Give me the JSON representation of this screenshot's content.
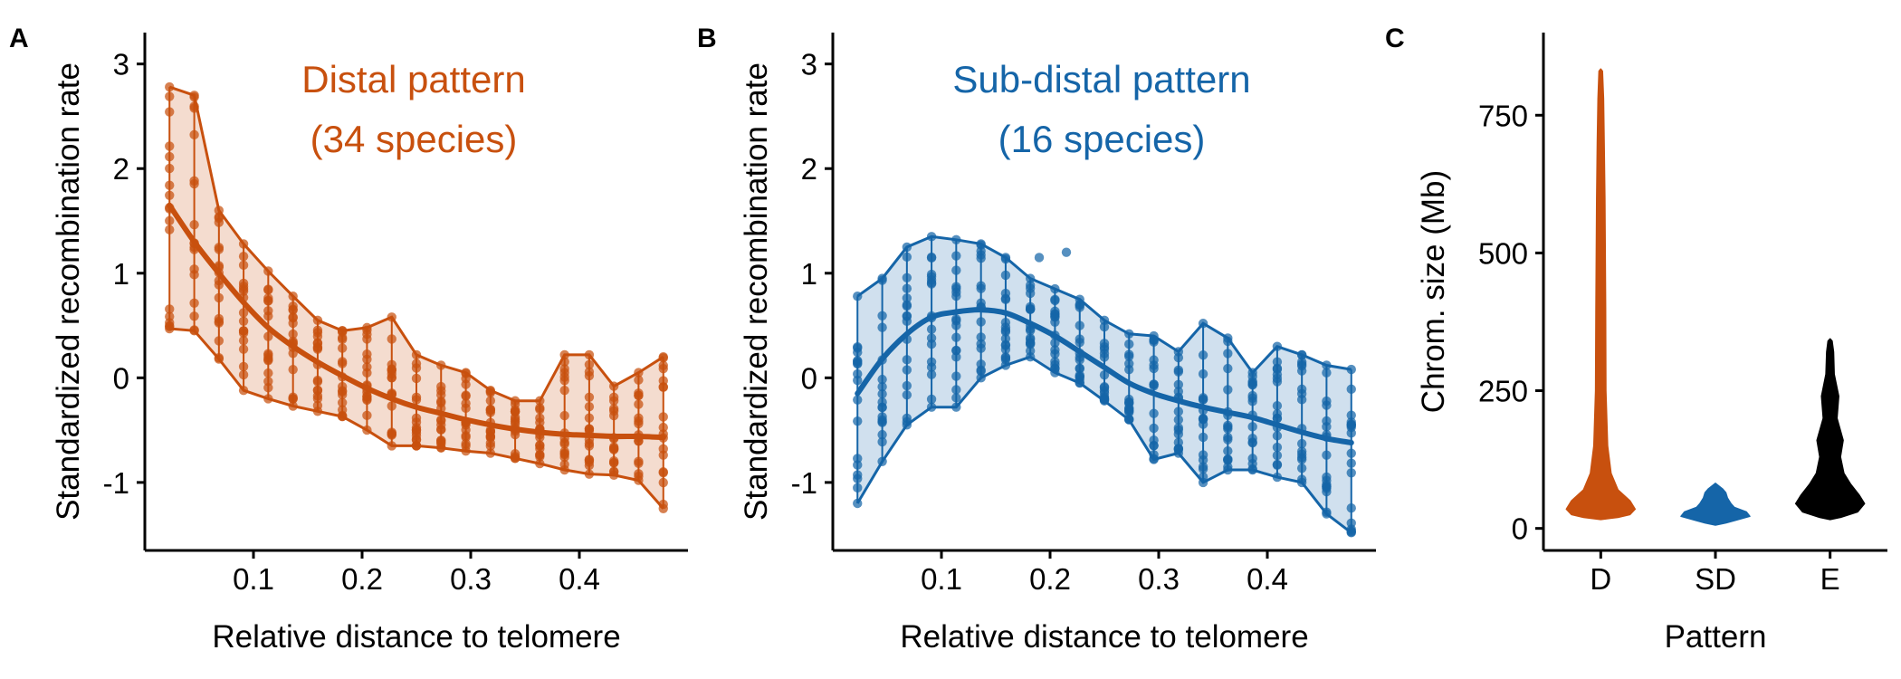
{
  "colors": {
    "distal": "#C8500E",
    "subdistal": "#1565A8",
    "even": "#000000",
    "axis": "#000000"
  },
  "panels": {
    "a": {
      "letter": "A",
      "title_line1": "Distal pattern",
      "title_line2": "(34 species)"
    },
    "b": {
      "letter": "B",
      "title_line1": "Sub-distal pattern",
      "title_line2": "(16 species)"
    },
    "c": {
      "letter": "C"
    }
  },
  "chart_data": [
    {
      "type": "scatter",
      "panel": "A",
      "title": "Distal pattern (34 species)",
      "xlabel": "Relative distance to telomere",
      "ylabel": "Standardized recombination rate",
      "xlim": [
        0.0,
        0.5
      ],
      "ylim": [
        -1.65,
        3.3
      ],
      "x_ticks": [
        0.1,
        0.2,
        0.3,
        0.4
      ],
      "x_tick_labels": [
        "0.1",
        "0.2",
        "0.3",
        "0.4"
      ],
      "y_ticks": [
        -1,
        0,
        1,
        2,
        3
      ],
      "y_tick_labels": [
        "-1",
        "0",
        "1",
        "2",
        "3"
      ],
      "grid": false,
      "x": [
        0.0227,
        0.0455,
        0.0682,
        0.0909,
        0.1136,
        0.1364,
        0.1591,
        0.1818,
        0.2045,
        0.2273,
        0.25,
        0.2727,
        0.2955,
        0.3182,
        0.3409,
        0.3636,
        0.3864,
        0.4091,
        0.4318,
        0.4545,
        0.4773
      ],
      "upper": [
        2.78,
        2.7,
        1.6,
        1.28,
        1.02,
        0.78,
        0.55,
        0.45,
        0.48,
        0.58,
        0.22,
        0.12,
        0.05,
        -0.12,
        -0.22,
        -0.22,
        0.22,
        0.22,
        -0.08,
        0.05,
        0.2
      ],
      "lower": [
        0.47,
        0.45,
        0.18,
        -0.12,
        -0.2,
        -0.27,
        -0.32,
        -0.37,
        -0.5,
        -0.65,
        -0.65,
        -0.67,
        -0.7,
        -0.72,
        -0.77,
        -0.82,
        -0.88,
        -0.92,
        -0.93,
        -0.98,
        -1.25
      ],
      "trend": [
        1.65,
        1.3,
        1.0,
        0.72,
        0.48,
        0.3,
        0.15,
        0.02,
        -0.1,
        -0.2,
        -0.28,
        -0.34,
        -0.4,
        -0.45,
        -0.49,
        -0.52,
        -0.54,
        -0.55,
        -0.56,
        -0.56,
        -0.57
      ],
      "series": [
        {
          "name": "Distal",
          "color": "#C8500E"
        }
      ]
    },
    {
      "type": "scatter",
      "panel": "B",
      "title": "Sub-distal pattern (16 species)",
      "xlabel": "Relative distance to telomere",
      "ylabel": "Standardized recombination rate",
      "xlim": [
        0.0,
        0.5
      ],
      "ylim": [
        -1.65,
        3.3
      ],
      "x_ticks": [
        0.1,
        0.2,
        0.3,
        0.4
      ],
      "x_tick_labels": [
        "0.1",
        "0.2",
        "0.3",
        "0.4"
      ],
      "y_ticks": [
        -1,
        0,
        1,
        2,
        3
      ],
      "y_tick_labels": [
        "-1",
        "0",
        "1",
        "2",
        "3"
      ],
      "grid": false,
      "x": [
        0.0227,
        0.0455,
        0.0682,
        0.0909,
        0.1136,
        0.1364,
        0.1591,
        0.1818,
        0.2045,
        0.2273,
        0.25,
        0.2727,
        0.2955,
        0.3182,
        0.3409,
        0.3636,
        0.3864,
        0.4091,
        0.4318,
        0.4545,
        0.4773
      ],
      "upper": [
        0.78,
        0.95,
        1.25,
        1.35,
        1.32,
        1.28,
        1.15,
        0.95,
        0.85,
        0.75,
        0.55,
        0.42,
        0.4,
        0.25,
        0.52,
        0.38,
        0.05,
        0.3,
        0.22,
        0.12,
        0.08
      ],
      "lower": [
        -1.2,
        -0.8,
        -0.45,
        -0.28,
        -0.28,
        0.0,
        0.12,
        0.2,
        0.05,
        -0.05,
        -0.22,
        -0.4,
        -0.78,
        -0.72,
        -1.0,
        -0.88,
        -0.88,
        -0.95,
        -1.0,
        -1.3,
        -1.48
      ],
      "trend": [
        -0.15,
        0.18,
        0.42,
        0.58,
        0.63,
        0.65,
        0.62,
        0.52,
        0.4,
        0.25,
        0.1,
        -0.05,
        -0.15,
        -0.22,
        -0.28,
        -0.33,
        -0.38,
        -0.45,
        -0.52,
        -0.58,
        -0.62
      ],
      "extra_points": [
        {
          "x": 0.19,
          "y": 1.15
        },
        {
          "x": 0.215,
          "y": 1.2
        }
      ],
      "series": [
        {
          "name": "Sub-distal",
          "color": "#1565A8"
        }
      ]
    },
    {
      "type": "violin",
      "panel": "C",
      "xlabel": "Pattern",
      "ylabel": "Chrom. size (Mb)",
      "categories": [
        "D",
        "SD",
        "E"
      ],
      "ylim": [
        -40,
        900
      ],
      "y_ticks": [
        0,
        250,
        500,
        750
      ],
      "y_tick_labels": [
        "0",
        "250",
        "500",
        "750"
      ],
      "grid": false,
      "violins": [
        {
          "name": "D",
          "color": "#C8500E",
          "profile": [
            [
              20,
              0.5
            ],
            [
              25,
              0.85
            ],
            [
              35,
              1.0
            ],
            [
              50,
              0.85
            ],
            [
              70,
              0.5
            ],
            [
              100,
              0.3
            ],
            [
              150,
              0.2
            ],
            [
              250,
              0.15
            ],
            [
              400,
              0.14
            ],
            [
              500,
              0.13
            ],
            [
              600,
              0.12
            ],
            [
              700,
              0.1
            ],
            [
              780,
              0.08
            ],
            [
              830,
              0.05
            ]
          ]
        },
        {
          "name": "SD",
          "color": "#1565A8",
          "profile": [
            [
              10,
              0.3
            ],
            [
              15,
              0.6
            ],
            [
              22,
              1.0
            ],
            [
              30,
              0.9
            ],
            [
              38,
              0.55
            ],
            [
              45,
              0.45
            ],
            [
              55,
              0.35
            ],
            [
              65,
              0.3
            ],
            [
              72,
              0.2
            ],
            [
              78,
              0.08
            ]
          ]
        },
        {
          "name": "E",
          "color": "#000000",
          "profile": [
            [
              20,
              0.3
            ],
            [
              30,
              0.8
            ],
            [
              45,
              1.0
            ],
            [
              60,
              0.85
            ],
            [
              80,
              0.6
            ],
            [
              100,
              0.4
            ],
            [
              130,
              0.3
            ],
            [
              160,
              0.38
            ],
            [
              200,
              0.2
            ],
            [
              240,
              0.25
            ],
            [
              280,
              0.12
            ],
            [
              320,
              0.1
            ],
            [
              340,
              0.06
            ]
          ]
        }
      ]
    }
  ]
}
